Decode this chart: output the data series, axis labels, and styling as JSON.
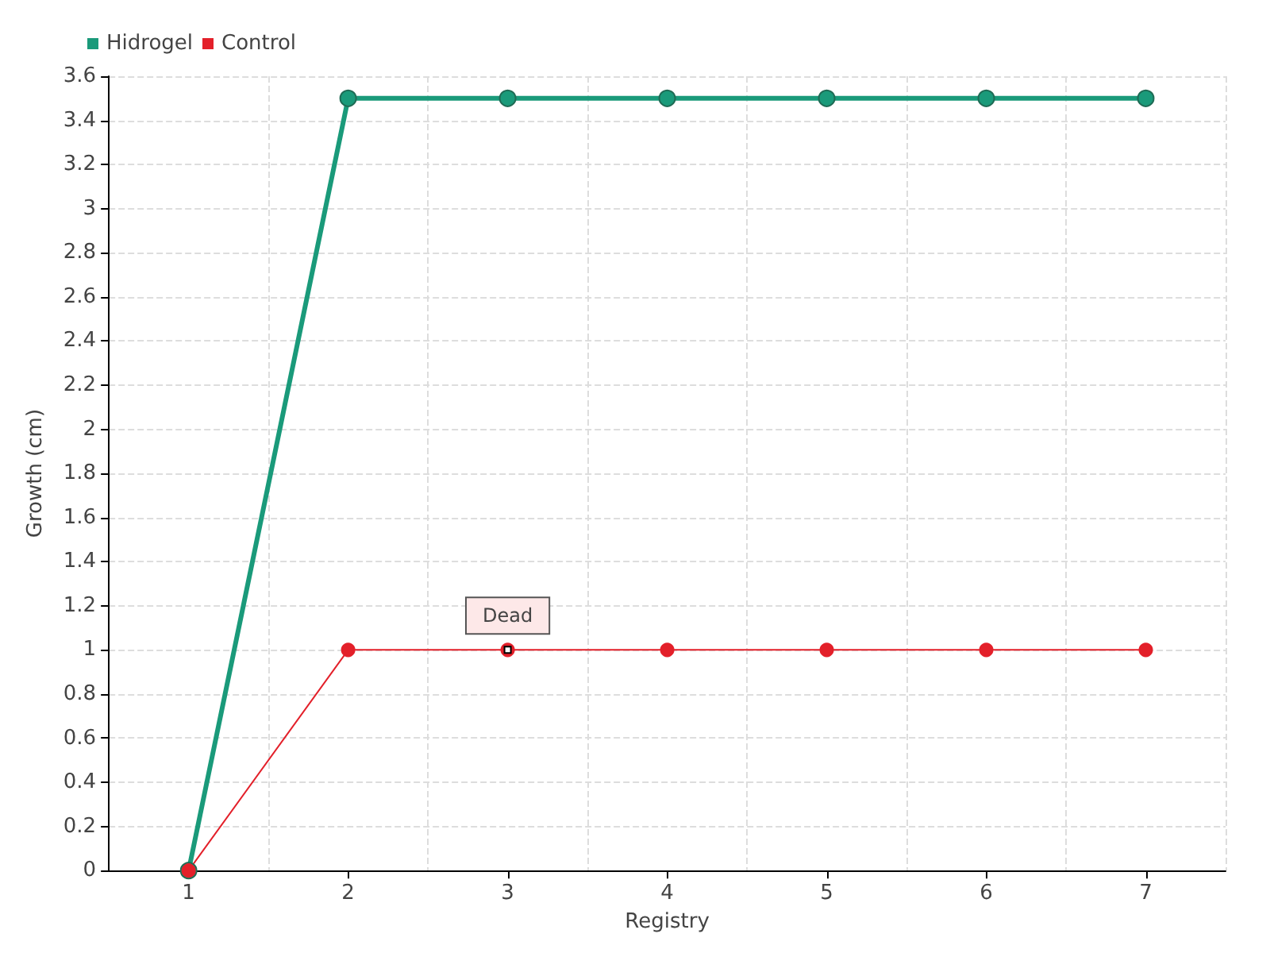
{
  "chart_data": {
    "type": "line",
    "xlabel": "Registry",
    "ylabel": "Growth (cm)",
    "categories": [
      "1",
      "2",
      "3",
      "4",
      "5",
      "6",
      "7"
    ],
    "series": [
      {
        "name": "Hidrogel",
        "color": "#1a9a7a",
        "values": [
          0,
          3.5,
          3.5,
          3.5,
          3.5,
          3.5,
          3.5
        ]
      },
      {
        "name": "Control",
        "color": "#e3202a",
        "values": [
          0,
          1,
          1,
          1,
          1,
          1,
          1
        ]
      }
    ],
    "ylim": [
      0,
      3.6
    ],
    "yticks": [
      0,
      0.2,
      0.4,
      0.6,
      0.8,
      1,
      1.2,
      1.4,
      1.6,
      1.8,
      2,
      2.2,
      2.4,
      2.6,
      2.8,
      3,
      3.2,
      3.4,
      3.6
    ],
    "grid": true,
    "legend": "top left",
    "marker": "circle",
    "line_style": "solid",
    "annotations": [
      {
        "text": "Dead",
        "x": "3",
        "y": 1
      }
    ]
  }
}
